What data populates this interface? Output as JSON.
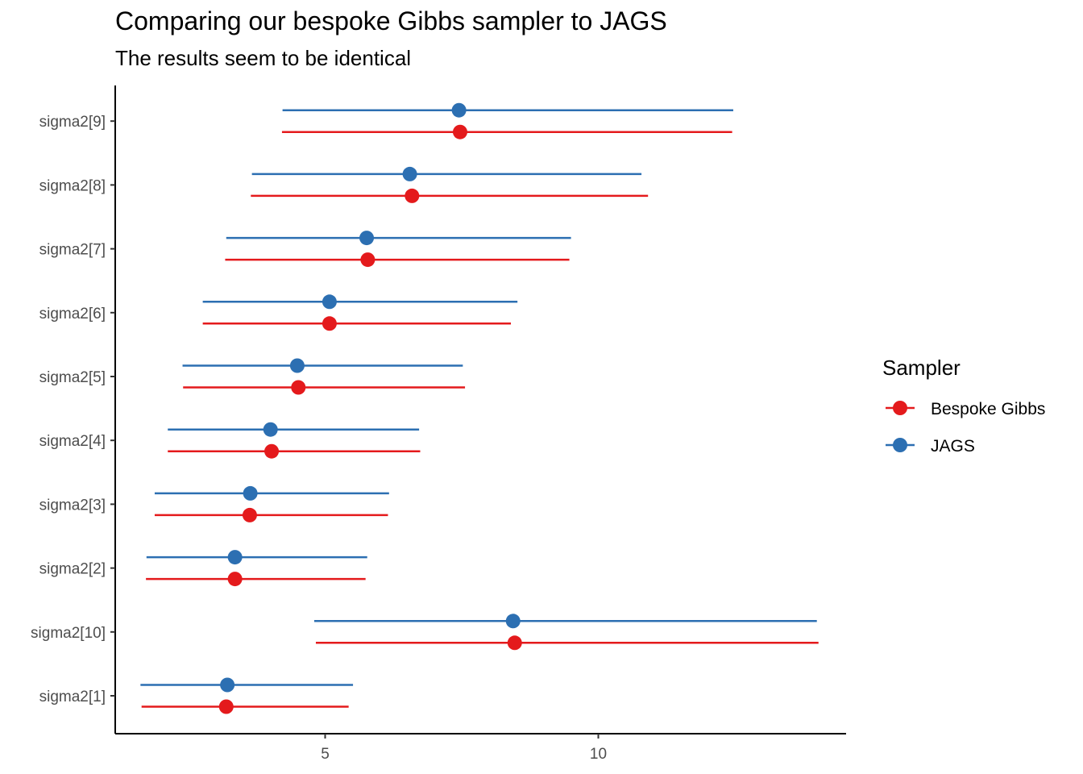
{
  "chart_data": {
    "type": "scatter",
    "title": "Comparing our bespoke Gibbs sampler to JAGS",
    "subtitle": "The results seem to be identical",
    "xlabel": "",
    "ylabel": "",
    "xlim": [
      1.0,
      14.5
    ],
    "x_ticks": [
      5,
      10
    ],
    "grid": false,
    "legend": {
      "title": "Sampler",
      "position": "right"
    },
    "categories": [
      "sigma2[1]",
      "sigma2[10]",
      "sigma2[2]",
      "sigma2[3]",
      "sigma2[4]",
      "sigma2[5]",
      "sigma2[6]",
      "sigma2[7]",
      "sigma2[8]",
      "sigma2[9]"
    ],
    "series": [
      {
        "name": "Bespoke Gibbs",
        "color": "#E41A1C",
        "points": [
          {
            "category": "sigma2[1]",
            "estimate": 3.19,
            "lower": 1.64,
            "upper": 5.43
          },
          {
            "category": "sigma2[10]",
            "estimate": 8.47,
            "lower": 4.83,
            "upper": 14.03
          },
          {
            "category": "sigma2[2]",
            "estimate": 3.35,
            "lower": 1.72,
            "upper": 5.74
          },
          {
            "category": "sigma2[3]",
            "estimate": 3.62,
            "lower": 1.88,
            "upper": 6.15
          },
          {
            "category": "sigma2[4]",
            "estimate": 4.02,
            "lower": 2.12,
            "upper": 6.74
          },
          {
            "category": "sigma2[5]",
            "estimate": 4.51,
            "lower": 2.4,
            "upper": 7.56
          },
          {
            "category": "sigma2[6]",
            "estimate": 5.08,
            "lower": 2.76,
            "upper": 8.4
          },
          {
            "category": "sigma2[7]",
            "estimate": 5.78,
            "lower": 3.17,
            "upper": 9.47
          },
          {
            "category": "sigma2[8]",
            "estimate": 6.59,
            "lower": 3.64,
            "upper": 10.91
          },
          {
            "category": "sigma2[9]",
            "estimate": 7.47,
            "lower": 4.21,
            "upper": 12.45
          }
        ]
      },
      {
        "name": "JAGS",
        "color": "#2C6FB2",
        "points": [
          {
            "category": "sigma2[1]",
            "estimate": 3.21,
            "lower": 1.62,
            "upper": 5.51
          },
          {
            "category": "sigma2[10]",
            "estimate": 8.44,
            "lower": 4.8,
            "upper": 14.0
          },
          {
            "category": "sigma2[2]",
            "estimate": 3.35,
            "lower": 1.73,
            "upper": 5.77
          },
          {
            "category": "sigma2[3]",
            "estimate": 3.63,
            "lower": 1.88,
            "upper": 6.17
          },
          {
            "category": "sigma2[4]",
            "estimate": 4.0,
            "lower": 2.12,
            "upper": 6.72
          },
          {
            "category": "sigma2[5]",
            "estimate": 4.49,
            "lower": 2.39,
            "upper": 7.52
          },
          {
            "category": "sigma2[6]",
            "estimate": 5.08,
            "lower": 2.76,
            "upper": 8.52
          },
          {
            "category": "sigma2[7]",
            "estimate": 5.76,
            "lower": 3.19,
            "upper": 9.5
          },
          {
            "category": "sigma2[8]",
            "estimate": 6.55,
            "lower": 3.66,
            "upper": 10.79
          },
          {
            "category": "sigma2[9]",
            "estimate": 7.45,
            "lower": 4.22,
            "upper": 12.47
          }
        ]
      }
    ]
  }
}
